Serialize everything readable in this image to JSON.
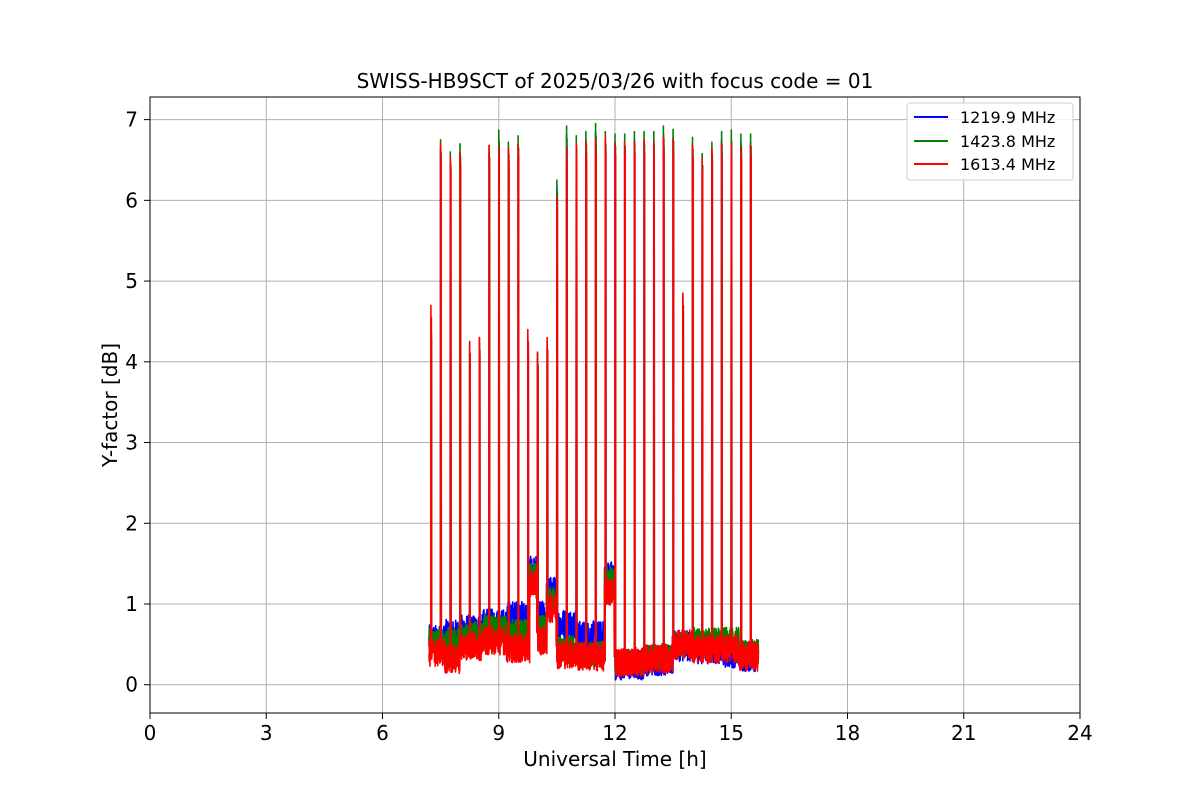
{
  "chart_data": {
    "type": "line",
    "title": "SWISS-HB9SCT of 2025/03/26 with focus code = 01",
    "xlabel": "Universal Time [h]",
    "ylabel": "Y-factor [dB]",
    "xlim": [
      0,
      24
    ],
    "ylim": [
      -0.35,
      7.28
    ],
    "xticks": [
      0,
      3,
      6,
      9,
      12,
      15,
      18,
      21,
      24
    ],
    "yticks": [
      0,
      1,
      2,
      3,
      4,
      5,
      6,
      7
    ],
    "grid": true,
    "legend_position": "top-right",
    "series": [
      {
        "name": "1219.9 MHz",
        "color": "#0000ff"
      },
      {
        "name": "1423.8 MHz",
        "color": "#008000"
      },
      {
        "name": "1613.4 MHz",
        "color": "#ff0000"
      }
    ],
    "time_range": [
      7.2,
      15.7
    ],
    "calibration_peaks": [
      {
        "x": 7.25,
        "g": 4.5,
        "r": 4.7
      },
      {
        "x": 7.5,
        "g": 6.75,
        "r": 6.7
      },
      {
        "x": 7.75,
        "g": 6.6,
        "r": 6.55
      },
      {
        "x": 8.0,
        "g": 6.7,
        "r": 6.6
      },
      {
        "x": 8.25,
        "g": 4.25,
        "r": 4.25
      },
      {
        "x": 8.5,
        "g": 4.3,
        "r": 4.3
      },
      {
        "x": 8.75,
        "g": 6.68,
        "r": 6.68
      },
      {
        "x": 9.0,
        "g": 6.87,
        "r": 6.67
      },
      {
        "x": 9.25,
        "g": 6.72,
        "r": 6.65
      },
      {
        "x": 9.5,
        "g": 6.8,
        "r": 6.7
      },
      {
        "x": 9.75,
        "g": 4.3,
        "r": 4.4
      },
      {
        "x": 10.0,
        "g": 4.1,
        "r": 4.12
      },
      {
        "x": 10.25,
        "g": 4.25,
        "r": 4.3
      },
      {
        "x": 10.5,
        "g": 6.25,
        "r": 6.05
      },
      {
        "x": 10.75,
        "g": 6.92,
        "r": 6.65
      },
      {
        "x": 11.0,
        "g": 6.8,
        "r": 6.7
      },
      {
        "x": 11.25,
        "g": 6.85,
        "r": 6.72
      },
      {
        "x": 11.5,
        "g": 6.95,
        "r": 6.75
      },
      {
        "x": 11.75,
        "g": 6.85,
        "r": 6.8
      },
      {
        "x": 12.0,
        "g": 6.82,
        "r": 6.7
      },
      {
        "x": 12.25,
        "g": 6.82,
        "r": 6.72
      },
      {
        "x": 12.5,
        "g": 6.85,
        "r": 6.72
      },
      {
        "x": 12.75,
        "g": 6.85,
        "r": 6.75
      },
      {
        "x": 13.0,
        "g": 6.85,
        "r": 6.72
      },
      {
        "x": 13.25,
        "g": 6.92,
        "r": 6.8
      },
      {
        "x": 13.5,
        "g": 6.88,
        "r": 6.75
      },
      {
        "x": 13.75,
        "g": 4.85,
        "r": 4.85
      },
      {
        "x": 14.0,
        "g": 6.78,
        "r": 6.68
      },
      {
        "x": 14.25,
        "g": 6.58,
        "r": 6.52
      },
      {
        "x": 14.5,
        "g": 6.72,
        "r": 6.65
      },
      {
        "x": 14.75,
        "g": 6.85,
        "r": 6.7
      },
      {
        "x": 15.0,
        "g": 6.87,
        "r": 6.7
      },
      {
        "x": 15.25,
        "g": 6.82,
        "r": 6.65
      },
      {
        "x": 15.5,
        "g": 6.82,
        "r": 6.68
      }
    ],
    "baseline_segments": [
      {
        "x0": 7.2,
        "x1": 7.6,
        "b": 0.55,
        "g": 0.55,
        "r": 0.4
      },
      {
        "x0": 7.6,
        "x1": 8.0,
        "b": 0.62,
        "g": 0.55,
        "r": 0.32
      },
      {
        "x0": 8.0,
        "x1": 8.6,
        "b": 0.68,
        "g": 0.62,
        "r": 0.48
      },
      {
        "x0": 8.6,
        "x1": 9.2,
        "b": 0.75,
        "g": 0.7,
        "r": 0.55
      },
      {
        "x0": 9.2,
        "x1": 9.8,
        "b": 0.85,
        "g": 0.65,
        "r": 0.45
      },
      {
        "x0": 9.8,
        "x1": 10.0,
        "b": 1.4,
        "g": 1.35,
        "r": 1.25
      },
      {
        "x0": 10.0,
        "x1": 10.25,
        "b": 0.85,
        "g": 0.7,
        "r": 0.55
      },
      {
        "x0": 10.25,
        "x1": 10.5,
        "b": 1.15,
        "g": 1.05,
        "r": 0.95
      },
      {
        "x0": 10.5,
        "x1": 11.0,
        "b": 0.75,
        "g": 0.45,
        "r": 0.38
      },
      {
        "x0": 11.0,
        "x1": 11.75,
        "b": 0.6,
        "g": 0.38,
        "r": 0.35
      },
      {
        "x0": 11.75,
        "x1": 12.0,
        "b": 1.35,
        "g": 1.3,
        "r": 1.15
      },
      {
        "x0": 12.0,
        "x1": 12.75,
        "b": 0.25,
        "g": 0.28,
        "r": 0.28
      },
      {
        "x0": 12.75,
        "x1": 13.5,
        "b": 0.3,
        "g": 0.35,
        "r": 0.32
      },
      {
        "x0": 13.5,
        "x1": 14.0,
        "b": 0.48,
        "g": 0.5,
        "r": 0.5
      },
      {
        "x0": 14.0,
        "x1": 14.75,
        "b": 0.45,
        "g": 0.55,
        "r": 0.45
      },
      {
        "x0": 14.75,
        "x1": 15.2,
        "b": 0.4,
        "g": 0.55,
        "r": 0.45
      },
      {
        "x0": 15.2,
        "x1": 15.7,
        "b": 0.35,
        "g": 0.4,
        "r": 0.35
      }
    ]
  }
}
